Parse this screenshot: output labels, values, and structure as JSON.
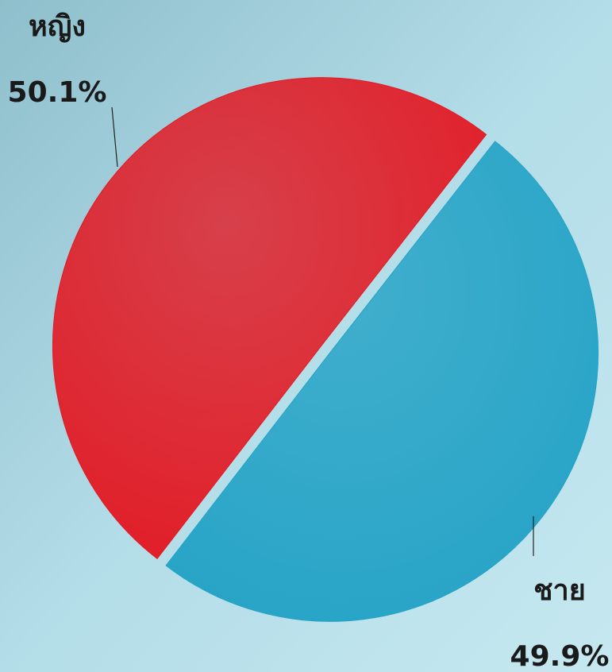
{
  "chart_data": {
    "type": "pie",
    "categories": [
      "ชาย",
      "หญิง"
    ],
    "values": [
      49.9,
      50.1
    ],
    "value_labels": [
      "49.9%",
      "50.1%"
    ],
    "colors": [
      "#25a3c6",
      "#e21b25"
    ]
  }
}
